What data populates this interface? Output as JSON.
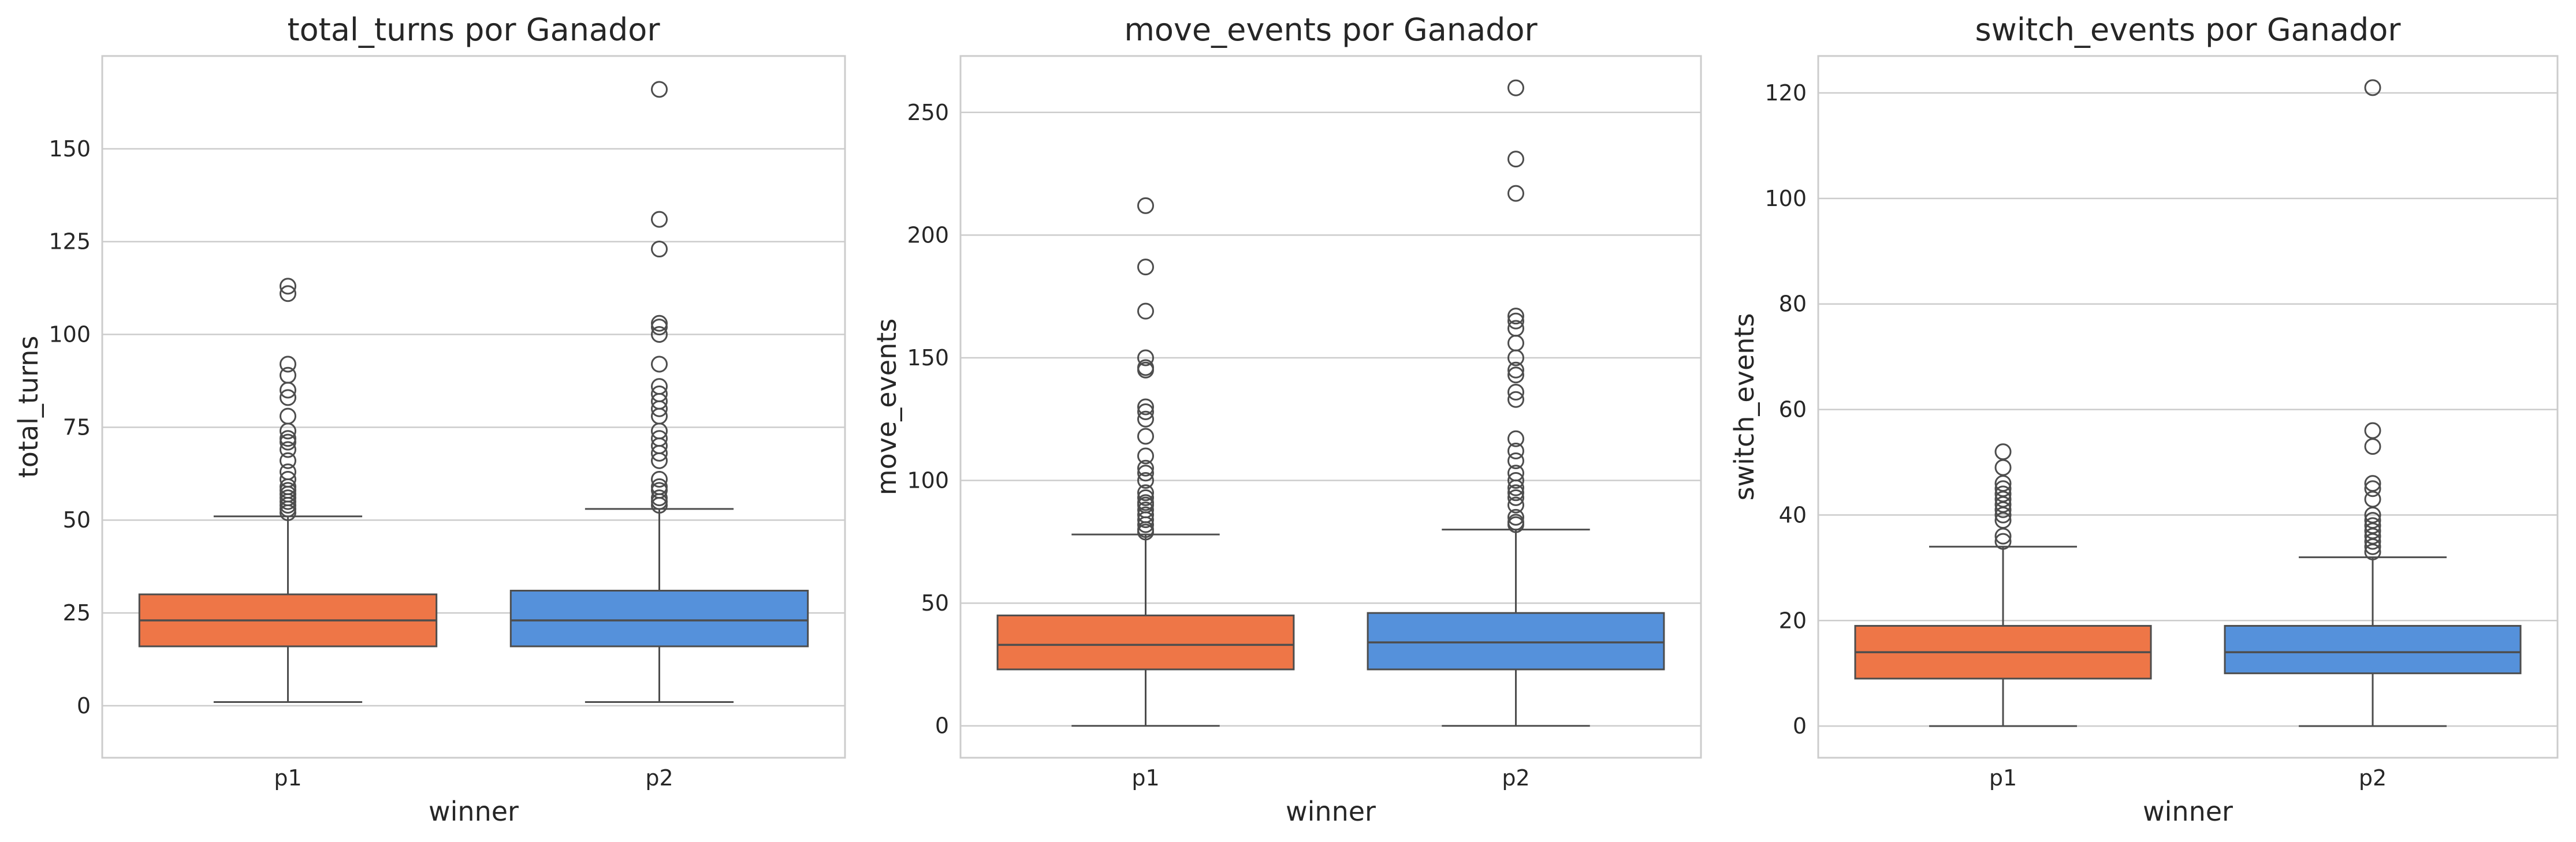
{
  "chart_data": [
    {
      "type": "box",
      "title": "total_turns por Ganador",
      "xlabel": "winner",
      "ylabel": "total_turns",
      "categories": [
        "p1",
        "p2"
      ],
      "ylim": [
        -14,
        175
      ],
      "yticks": [
        0,
        25,
        50,
        75,
        100,
        125,
        150
      ],
      "grid": true,
      "boxes": [
        {
          "category": "p1",
          "whisker_low": 1,
          "q1": 16,
          "median": 23,
          "q3": 30,
          "whisker_high": 51,
          "outliers": [
            113,
            111,
            92,
            89,
            85,
            83,
            78,
            74,
            72,
            71,
            69,
            66,
            63,
            61,
            59,
            58,
            57,
            56,
            55,
            54,
            53,
            52
          ]
        },
        {
          "category": "p2",
          "whisker_low": 1,
          "q1": 16,
          "median": 23,
          "q3": 31,
          "whisker_high": 53,
          "outliers": [
            166,
            131,
            123,
            103,
            102,
            100,
            92,
            86,
            84,
            82,
            80,
            78,
            74,
            72,
            70,
            68,
            66,
            61,
            59,
            58,
            56,
            55,
            54
          ]
        }
      ]
    },
    {
      "type": "box",
      "title": "move_events por Ganador",
      "xlabel": "winner",
      "ylabel": "move_events",
      "categories": [
        "p1",
        "p2"
      ],
      "ylim": [
        -13,
        273
      ],
      "yticks": [
        0,
        50,
        100,
        150,
        200,
        250
      ],
      "grid": true,
      "boxes": [
        {
          "category": "p1",
          "whisker_low": 0,
          "q1": 23,
          "median": 33,
          "q3": 45,
          "whisker_high": 78,
          "outliers": [
            212,
            187,
            169,
            150,
            146,
            145,
            130,
            128,
            125,
            118,
            110,
            105,
            103,
            100,
            95,
            93,
            91,
            90,
            88,
            86,
            84,
            82,
            80,
            79
          ]
        },
        {
          "category": "p2",
          "whisker_low": 0,
          "q1": 23,
          "median": 34,
          "q3": 46,
          "whisker_high": 80,
          "outliers": [
            260,
            231,
            217,
            167,
            165,
            162,
            156,
            150,
            145,
            143,
            136,
            133,
            117,
            112,
            108,
            103,
            100,
            97,
            95,
            93,
            90,
            85,
            83,
            82
          ]
        }
      ]
    },
    {
      "type": "box",
      "title": "switch_events por Ganador",
      "xlabel": "winner",
      "ylabel": "switch_events",
      "categories": [
        "p1",
        "p2"
      ],
      "ylim": [
        -6,
        127
      ],
      "yticks": [
        0,
        20,
        40,
        60,
        80,
        100,
        120
      ],
      "grid": true,
      "boxes": [
        {
          "category": "p1",
          "whisker_low": 0,
          "q1": 9,
          "median": 14,
          "q3": 19,
          "whisker_high": 34,
          "outliers": [
            52,
            49,
            46,
            45,
            44,
            43,
            42,
            41,
            40,
            39,
            36,
            35
          ]
        },
        {
          "category": "p2",
          "whisker_low": 0,
          "q1": 10,
          "median": 14,
          "q3": 19,
          "whisker_high": 32,
          "outliers": [
            121,
            56,
            53,
            46,
            45,
            43,
            40,
            39,
            38,
            37,
            36,
            35,
            34,
            33
          ]
        }
      ]
    }
  ],
  "colors": {
    "p1": "#ee7647",
    "p2": "#5591db"
  }
}
